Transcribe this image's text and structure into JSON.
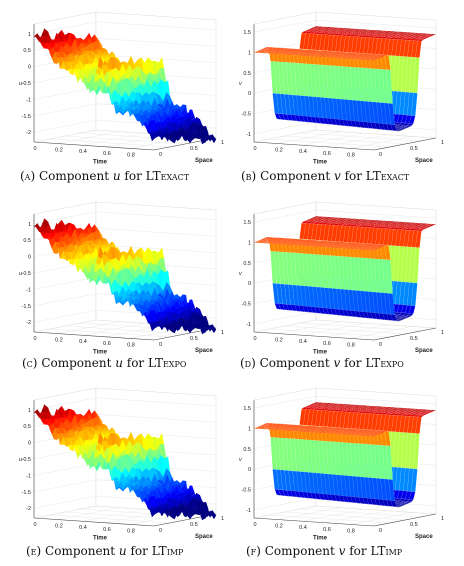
{
  "captions": [
    {
      "letter": "(a)",
      "text": "Component ",
      "var": "u",
      "for": " for ",
      "method_big": "LT",
      "method_sc": "exact"
    },
    {
      "letter": "(b)",
      "text": "Component ",
      "var": "v",
      "for": " for ",
      "method_big": "LT",
      "method_sc": "exact"
    },
    {
      "letter": "(c)",
      "text": "Component ",
      "var": "u",
      "for": " for ",
      "method_big": "LT",
      "method_sc": "expo"
    },
    {
      "letter": "(d)",
      "text": "Component ",
      "var": "v",
      "for": " for ",
      "method_big": "LT",
      "method_sc": "expo"
    },
    {
      "letter": "(e)",
      "text": "Component ",
      "var": "u",
      "for": " for ",
      "method_big": "LT",
      "method_sc": "imp"
    },
    {
      "letter": "(f)",
      "text": "Component ",
      "var": "v",
      "for": " for ",
      "method_big": "LT",
      "method_sc": "imp"
    }
  ],
  "axes": {
    "time_label": "Time",
    "space_label": "Space",
    "u_label": "u",
    "v_label": "v",
    "time_ticks": [
      "0",
      "0.2",
      "0.4",
      "0.6",
      "0.8"
    ],
    "space_ticks_u": [
      "0",
      "0.5",
      "1"
    ],
    "space_ticks_v": [
      "0",
      "0.5",
      "1"
    ],
    "u_ticks": [
      "1",
      "0.5",
      "0",
      "-0.5",
      "-1",
      "-1.5",
      "-2"
    ],
    "v_ticks": [
      "1.5",
      "1",
      "0.5",
      "0",
      "-0.5",
      "-1"
    ]
  },
  "chart_data": [
    {
      "type": "surface",
      "component": "u",
      "method": "LTexact",
      "zlim": [
        -2,
        1
      ],
      "xlabel": "Time",
      "ylabel": "Space"
    },
    {
      "type": "surface",
      "component": "v",
      "method": "LTexact",
      "zlim": [
        -1,
        1.5
      ],
      "xlabel": "Time",
      "ylabel": "Space"
    },
    {
      "type": "surface",
      "component": "u",
      "method": "LTexpo",
      "zlim": [
        -2,
        1
      ],
      "xlabel": "Time",
      "ylabel": "Space"
    },
    {
      "type": "surface",
      "component": "v",
      "method": "LTexpo",
      "zlim": [
        -1,
        1.5
      ],
      "xlabel": "Time",
      "ylabel": "Space"
    },
    {
      "type": "surface",
      "component": "u",
      "method": "LTimp",
      "zlim": [
        -2,
        1
      ],
      "xlabel": "Time",
      "ylabel": "Space"
    },
    {
      "type": "surface",
      "component": "v",
      "method": "LTimp",
      "zlim": [
        -1,
        1.5
      ],
      "xlabel": "Time",
      "ylabel": "Space"
    }
  ]
}
